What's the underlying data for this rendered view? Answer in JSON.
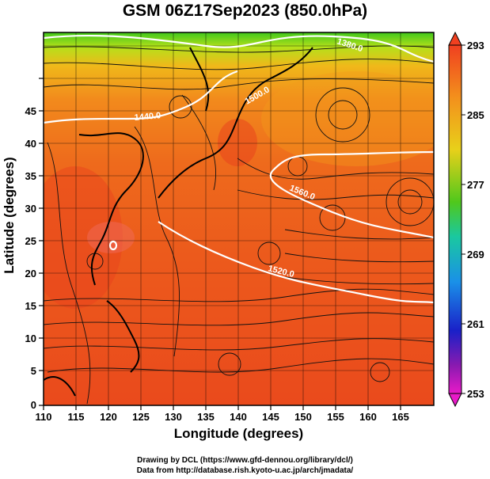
{
  "title": "GSM 06Z17Sep2023 (850.0hPa)",
  "x_axis": {
    "label": "Longitude (degrees)",
    "ticks": [
      "110",
      "115",
      "120",
      "125",
      "130",
      "135",
      "140",
      "145",
      "150",
      "155",
      "160",
      "165"
    ]
  },
  "y_axis": {
    "label": "Latitude (degrees)",
    "ticks": [
      "0",
      "5",
      "10",
      "15",
      "20",
      "25",
      "30",
      "35",
      "40",
      "45"
    ]
  },
  "colorbar": {
    "labels": [
      "293",
      "285",
      "277",
      "269",
      "261",
      "253"
    ]
  },
  "contour_labels": [
    "1380.0",
    "1440.0",
    "1500.0",
    "1560.0",
    "1520.0"
  ],
  "credits": {
    "line1": "Drawing by DCL (https://www.gfd-dennou.org/library/dcl/)",
    "line2": "Data from http://database.rish.kyoto-u.ac.jp/arch/jmadata/"
  },
  "colors": {
    "warm": "#e8401c",
    "mid": "#f08a1c",
    "cool": "#9adc1c",
    "cold": "#2ac81c"
  }
}
